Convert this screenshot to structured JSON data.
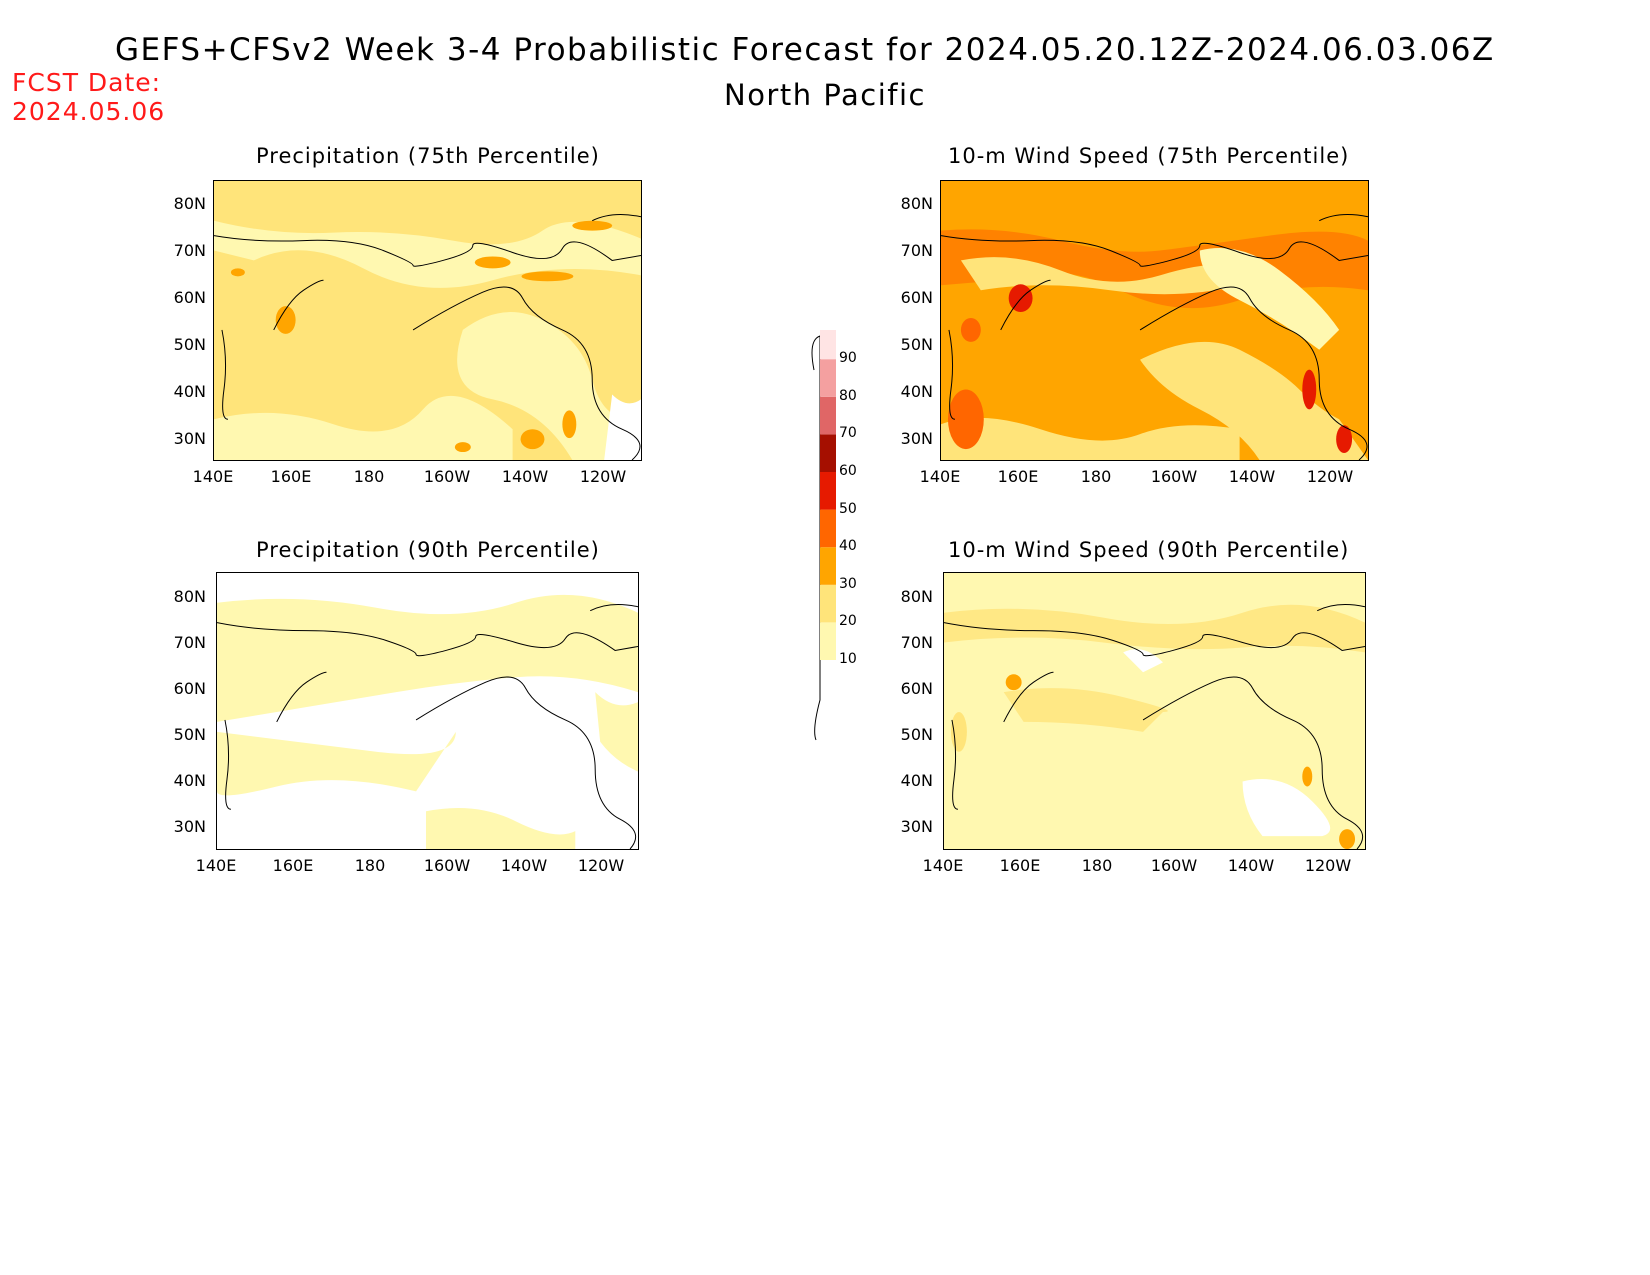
{
  "header": {
    "title": "GEFS+CFSv2 Week 3-4 Probabilistic Forecast for 2024.05.20.12Z-2024.06.03.06Z",
    "region": "North Pacific",
    "fcst_label": "FCST Date:",
    "fcst_date": "2024.05.06"
  },
  "panels": [
    {
      "id": "precip75",
      "title": "Precipitation (75th Percentile)"
    },
    {
      "id": "wind75",
      "title": "10-m Wind Speed (75th Percentile)"
    },
    {
      "id": "precip90",
      "title": "Precipitation (90th Percentile)"
    },
    {
      "id": "wind90",
      "title": "10-m Wind Speed (90th Percentile)"
    }
  ],
  "axes": {
    "lat_labels": [
      "80N",
      "70N",
      "60N",
      "50N",
      "40N",
      "30N"
    ],
    "lon_labels": [
      "140E",
      "160E",
      "180",
      "160W",
      "140W",
      "120W"
    ]
  },
  "colorbar": {
    "levels": [
      "10",
      "20",
      "30",
      "40",
      "50",
      "60",
      "70",
      "80",
      "90"
    ],
    "colors": [
      "#fff8b0",
      "#ffe47a",
      "#ffa500",
      "#ff6600",
      "#e61a00",
      "#a50f00",
      "#e06666",
      "#f4a0a0",
      "#ffe4e4"
    ]
  },
  "fills": {
    "p10": "#fff8b0",
    "p20": "#ffe47a",
    "p30": "#ffa500",
    "p40": "#ff6600",
    "p50": "#e61a00"
  }
}
